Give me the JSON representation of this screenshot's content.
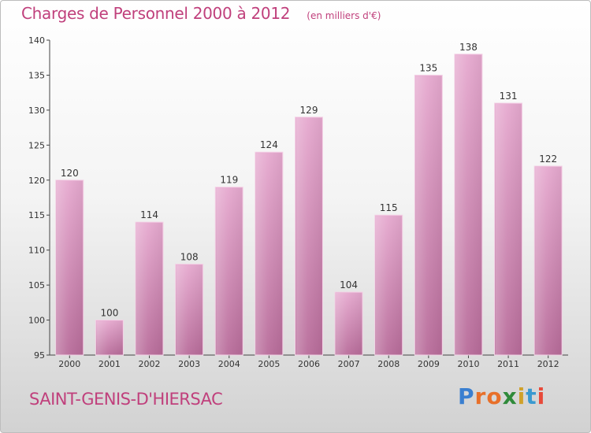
{
  "title": "Charges de Personnel 2000 à 2012",
  "subtitle": "(en milliers d'€)",
  "commune": "SAINT-GENIS-D'HIERSAC",
  "logo": {
    "letters": [
      "P",
      "r",
      "o",
      "x",
      "i",
      "t",
      "i"
    ],
    "colors": [
      "#3a7fd0",
      "#e8702a",
      "#e8702a",
      "#2f8a3a",
      "#d0a12a",
      "#3a9ad0",
      "#e84a3a"
    ]
  },
  "colors": {
    "bar": "#d890bc",
    "accent": "#c0407c"
  },
  "chart_data": {
    "type": "bar",
    "title": "Charges de Personnel 2000 à 2012",
    "subtitle": "(en milliers d'€)",
    "categories": [
      "2000",
      "2001",
      "2002",
      "2003",
      "2004",
      "2005",
      "2006",
      "2007",
      "2008",
      "2009",
      "2010",
      "2011",
      "2012"
    ],
    "values": [
      120,
      100,
      114,
      108,
      119,
      124,
      129,
      104,
      115,
      135,
      138,
      131,
      122
    ],
    "xlabel": "",
    "ylabel": "",
    "ylim": [
      95,
      140
    ],
    "yticks": [
      95,
      100,
      105,
      110,
      115,
      120,
      125,
      130,
      135,
      140
    ],
    "grid": false,
    "legend": "none"
  }
}
